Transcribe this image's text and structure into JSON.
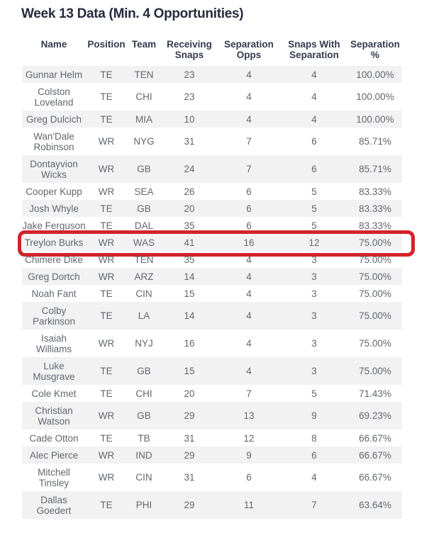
{
  "title": "Week 13 Data (Min. 4 Opportunities)",
  "chart_data": {
    "type": "table",
    "title": "Week 13 Data (Min. 4 Opportunities)",
    "columns": [
      "Name",
      "Position",
      "Team",
      "Receiving Snaps",
      "Separation Opps",
      "Snaps With Separation",
      "Separation %"
    ],
    "rows": [
      {
        "name": "Gunnar Helm",
        "position": "TE",
        "team": "TEN",
        "receiving_snaps": 23,
        "separation_opps": 4,
        "snaps_with_separation": 4,
        "separation_pct": "100.00%",
        "highlighted": false
      },
      {
        "name": "Colston Loveland",
        "position": "TE",
        "team": "CHI",
        "receiving_snaps": 23,
        "separation_opps": 4,
        "snaps_with_separation": 4,
        "separation_pct": "100.00%",
        "highlighted": false
      },
      {
        "name": "Greg Dulcich",
        "position": "TE",
        "team": "MIA",
        "receiving_snaps": 10,
        "separation_opps": 4,
        "snaps_with_separation": 4,
        "separation_pct": "100.00%",
        "highlighted": false
      },
      {
        "name": "Wan'Dale Robinson",
        "position": "WR",
        "team": "NYG",
        "receiving_snaps": 31,
        "separation_opps": 7,
        "snaps_with_separation": 6,
        "separation_pct": "85.71%",
        "highlighted": false
      },
      {
        "name": "Dontayvion Wicks",
        "position": "WR",
        "team": "GB",
        "receiving_snaps": 24,
        "separation_opps": 7,
        "snaps_with_separation": 6,
        "separation_pct": "85.71%",
        "highlighted": false
      },
      {
        "name": "Cooper Kupp",
        "position": "WR",
        "team": "SEA",
        "receiving_snaps": 26,
        "separation_opps": 6,
        "snaps_with_separation": 5,
        "separation_pct": "83.33%",
        "highlighted": false
      },
      {
        "name": "Josh Whyle",
        "position": "TE",
        "team": "GB",
        "receiving_snaps": 20,
        "separation_opps": 6,
        "snaps_with_separation": 5,
        "separation_pct": "83.33%",
        "highlighted": false
      },
      {
        "name": "Jake Ferguson",
        "position": "TE",
        "team": "DAL",
        "receiving_snaps": 35,
        "separation_opps": 6,
        "snaps_with_separation": 5,
        "separation_pct": "83.33%",
        "highlighted": false
      },
      {
        "name": "Treylon Burks",
        "position": "WR",
        "team": "WAS",
        "receiving_snaps": 41,
        "separation_opps": 16,
        "snaps_with_separation": 12,
        "separation_pct": "75.00%",
        "highlighted": true
      },
      {
        "name": "Chimere Dike",
        "position": "WR",
        "team": "TEN",
        "receiving_snaps": 35,
        "separation_opps": 4,
        "snaps_with_separation": 3,
        "separation_pct": "75.00%",
        "highlighted": false
      },
      {
        "name": "Greg Dortch",
        "position": "WR",
        "team": "ARZ",
        "receiving_snaps": 14,
        "separation_opps": 4,
        "snaps_with_separation": 3,
        "separation_pct": "75.00%",
        "highlighted": false
      },
      {
        "name": "Noah Fant",
        "position": "TE",
        "team": "CIN",
        "receiving_snaps": 15,
        "separation_opps": 4,
        "snaps_with_separation": 3,
        "separation_pct": "75.00%",
        "highlighted": false
      },
      {
        "name": "Colby Parkinson",
        "position": "TE",
        "team": "LA",
        "receiving_snaps": 14,
        "separation_opps": 4,
        "snaps_with_separation": 3,
        "separation_pct": "75.00%",
        "highlighted": false
      },
      {
        "name": "Isaiah Williams",
        "position": "WR",
        "team": "NYJ",
        "receiving_snaps": 16,
        "separation_opps": 4,
        "snaps_with_separation": 3,
        "separation_pct": "75.00%",
        "highlighted": false
      },
      {
        "name": "Luke Musgrave",
        "position": "TE",
        "team": "GB",
        "receiving_snaps": 15,
        "separation_opps": 4,
        "snaps_with_separation": 3,
        "separation_pct": "75.00%",
        "highlighted": false
      },
      {
        "name": "Cole Kmet",
        "position": "TE",
        "team": "CHI",
        "receiving_snaps": 20,
        "separation_opps": 7,
        "snaps_with_separation": 5,
        "separation_pct": "71.43%",
        "highlighted": false
      },
      {
        "name": "Christian Watson",
        "position": "WR",
        "team": "GB",
        "receiving_snaps": 29,
        "separation_opps": 13,
        "snaps_with_separation": 9,
        "separation_pct": "69.23%",
        "highlighted": false
      },
      {
        "name": "Cade Otton",
        "position": "TE",
        "team": "TB",
        "receiving_snaps": 31,
        "separation_opps": 12,
        "snaps_with_separation": 8,
        "separation_pct": "66.67%",
        "highlighted": false
      },
      {
        "name": "Alec Pierce",
        "position": "WR",
        "team": "IND",
        "receiving_snaps": 29,
        "separation_opps": 9,
        "snaps_with_separation": 6,
        "separation_pct": "66.67%",
        "highlighted": false
      },
      {
        "name": "Mitchell Tinsley",
        "position": "WR",
        "team": "CIN",
        "receiving_snaps": 31,
        "separation_opps": 6,
        "snaps_with_separation": 4,
        "separation_pct": "66.67%",
        "highlighted": false
      },
      {
        "name": "Dallas Goedert",
        "position": "TE",
        "team": "PHI",
        "receiving_snaps": 29,
        "separation_opps": 11,
        "snaps_with_separation": 7,
        "separation_pct": "63.64%",
        "highlighted": false
      }
    ]
  },
  "highlight": {
    "target_row": "Treylon Burks",
    "shape": "rounded-rectangle",
    "color": "#d2232a"
  },
  "colors": {
    "background": "#ffffff",
    "title_text": "#262b3d",
    "header_text": "#343b4f",
    "cell_text": "#61666f",
    "row_stripe": "#f2f2f3",
    "highlight_red": "#d2232a"
  }
}
